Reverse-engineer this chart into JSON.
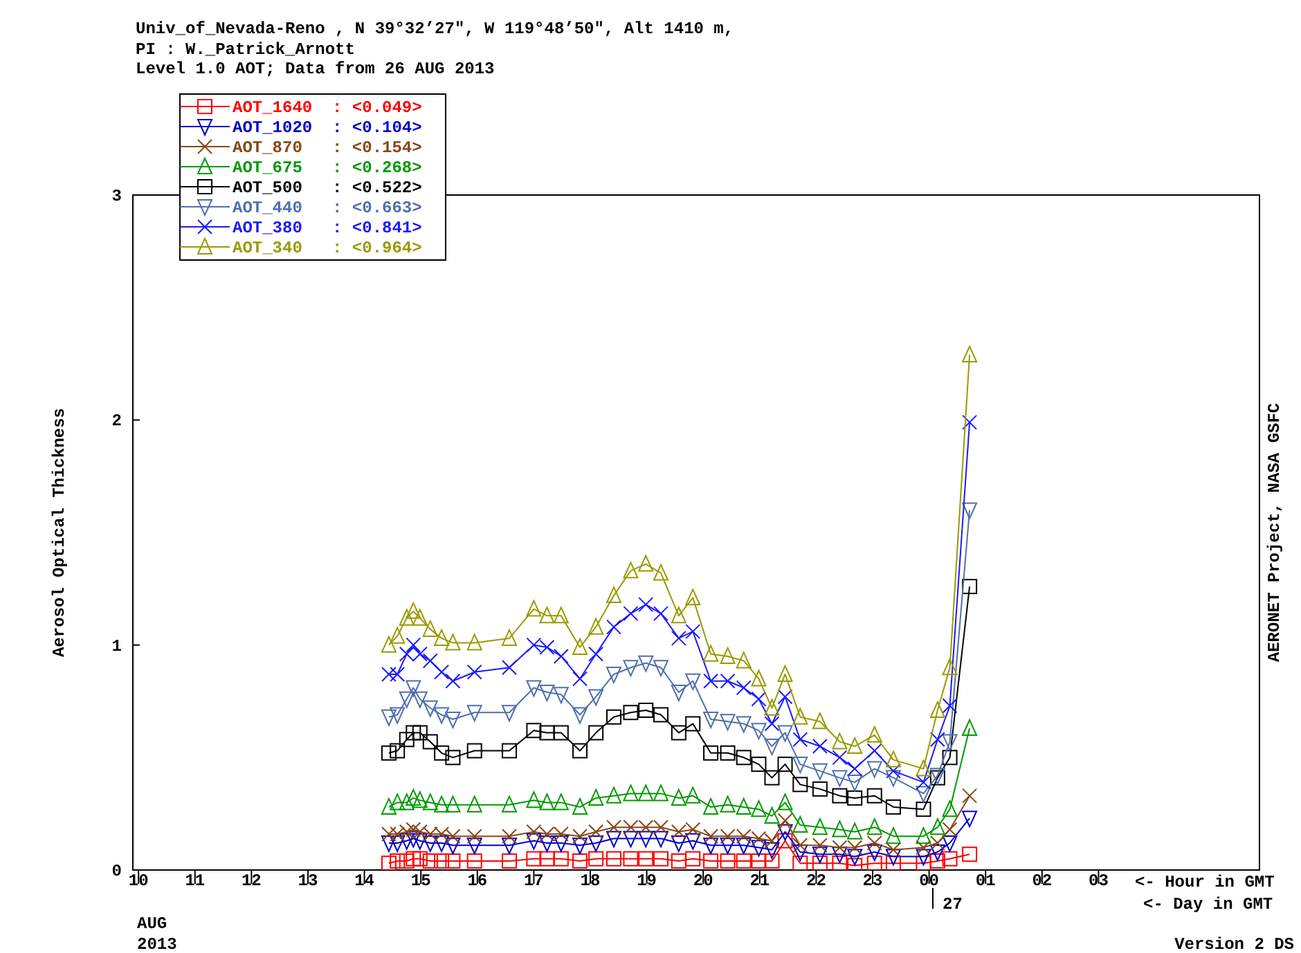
{
  "chart_data": {
    "type": "line",
    "title": "Univ_of_Nevada-Reno , N 39°32’27\", W 119°48’50\", Alt 1410 m,",
    "subtitle": "PI : W._Patrick_Arnott\nLevel 1.0 AOT; Data from 26 AUG 2013",
    "ylabel": "Aerosol Optical Thickness",
    "annotations": [
      "27",
      "<- Hour in GMT",
      "<- Day in GMT",
      "AUG",
      "2013",
      "Version 2 DS",
      "AERONET Project, NASA GSFC"
    ],
    "x": [
      "2013-08-26T14:26",
      "2013-08-26T14:35",
      "2013-08-26T14:45",
      "2013-08-26T14:52",
      "2013-08-26T14:59",
      "2013-08-26T15:10",
      "2013-08-26T15:22",
      "2013-08-26T15:34",
      "2013-08-26T15:57",
      "2013-08-26T16:34",
      "2013-08-26T17:00",
      "2013-08-26T17:14",
      "2013-08-26T17:29",
      "2013-08-26T17:49",
      "2013-08-26T18:06",
      "2013-08-26T18:25",
      "2013-08-26T18:43",
      "2013-08-26T18:59",
      "2013-08-26T19:15",
      "2013-08-26T19:34",
      "2013-08-26T19:49",
      "2013-08-26T20:08",
      "2013-08-26T20:26",
      "2013-08-26T20:43",
      "2013-08-26T20:59",
      "2013-08-26T21:13",
      "2013-08-26T21:27",
      "2013-08-26T21:43",
      "2013-08-26T22:04",
      "2013-08-26T22:25",
      "2013-08-26T22:41",
      "2013-08-26T23:02",
      "2013-08-26T23:22",
      "2013-08-26T23:54",
      "2013-08-27T00:09",
      "2013-08-27T00:22",
      "2013-08-27T00:43"
    ],
    "xlim": [
      "2013-08-26T09:54",
      "2013-08-27T05:51"
    ],
    "xticks": [
      {
        "value": "2013-08-26T10:00",
        "label": "10"
      },
      {
        "value": "2013-08-26T11:00",
        "label": "11"
      },
      {
        "value": "2013-08-26T12:00",
        "label": "12"
      },
      {
        "value": "2013-08-26T13:00",
        "label": "13"
      },
      {
        "value": "2013-08-26T14:00",
        "label": "14"
      },
      {
        "value": "2013-08-26T15:00",
        "label": "15"
      },
      {
        "value": "2013-08-26T16:00",
        "label": "16"
      },
      {
        "value": "2013-08-26T17:00",
        "label": "17"
      },
      {
        "value": "2013-08-26T18:00",
        "label": "18"
      },
      {
        "value": "2013-08-26T19:00",
        "label": "19"
      },
      {
        "value": "2013-08-26T20:00",
        "label": "20"
      },
      {
        "value": "2013-08-26T21:00",
        "label": "21"
      },
      {
        "value": "2013-08-26T22:00",
        "label": "22"
      },
      {
        "value": "2013-08-26T23:00",
        "label": "23"
      },
      {
        "value": "2013-08-27T00:00",
        "label": "00"
      },
      {
        "value": "2013-08-27T01:00",
        "label": "01"
      },
      {
        "value": "2013-08-27T02:00",
        "label": "02"
      },
      {
        "value": "2013-08-27T03:00",
        "label": "03"
      }
    ],
    "ylim": [
      0,
      3
    ],
    "yticks": [
      0,
      1,
      2,
      3
    ],
    "grid": false,
    "legend": "top left",
    "line_style": "solid",
    "series": [
      {
        "name": "AOT_1640  : <0.049>",
        "color": "#ff0000",
        "marker": "square",
        "values": [
          0.03,
          0.04,
          0.04,
          0.05,
          0.05,
          0.04,
          0.04,
          0.04,
          0.04,
          0.04,
          0.05,
          0.05,
          0.05,
          0.04,
          0.05,
          0.05,
          0.05,
          0.05,
          0.05,
          0.04,
          0.05,
          0.04,
          0.04,
          0.04,
          0.04,
          0.04,
          0.13,
          0.03,
          0.03,
          0.03,
          0.02,
          0.03,
          0.03,
          0.03,
          0.04,
          0.05,
          0.07
        ]
      },
      {
        "name": "AOT_1020  : <0.104>",
        "color": "#0000cc",
        "marker": "triangle-down",
        "values": [
          0.12,
          0.12,
          0.13,
          0.14,
          0.13,
          0.12,
          0.12,
          0.11,
          0.11,
          0.11,
          0.13,
          0.12,
          0.12,
          0.11,
          0.12,
          0.14,
          0.14,
          0.14,
          0.14,
          0.12,
          0.13,
          0.11,
          0.11,
          0.11,
          0.1,
          0.09,
          0.17,
          0.08,
          0.07,
          0.07,
          0.06,
          0.08,
          0.06,
          0.06,
          0.08,
          0.12,
          0.23
        ]
      },
      {
        "name": "AOT_870   : <0.154>",
        "color": "#8b4513",
        "marker": "cross",
        "values": [
          0.16,
          0.16,
          0.17,
          0.18,
          0.17,
          0.16,
          0.16,
          0.15,
          0.15,
          0.15,
          0.17,
          0.16,
          0.16,
          0.15,
          0.17,
          0.19,
          0.19,
          0.19,
          0.19,
          0.17,
          0.18,
          0.15,
          0.15,
          0.15,
          0.14,
          0.13,
          0.22,
          0.11,
          0.11,
          0.1,
          0.1,
          0.12,
          0.09,
          0.1,
          0.12,
          0.18,
          0.33
        ]
      },
      {
        "name": "AOT_675   : <0.268>",
        "color": "#009900",
        "marker": "triangle",
        "values": [
          0.28,
          0.3,
          0.3,
          0.32,
          0.31,
          0.3,
          0.29,
          0.29,
          0.29,
          0.29,
          0.31,
          0.3,
          0.3,
          0.28,
          0.32,
          0.33,
          0.34,
          0.34,
          0.34,
          0.32,
          0.33,
          0.28,
          0.29,
          0.28,
          0.27,
          0.24,
          0.3,
          0.2,
          0.19,
          0.18,
          0.17,
          0.19,
          0.15,
          0.15,
          0.19,
          0.27,
          0.63
        ]
      },
      {
        "name": "AOT_500   : <0.522>",
        "color": "#000000",
        "marker": "square",
        "values": [
          0.52,
          0.53,
          0.58,
          0.61,
          0.61,
          0.57,
          0.52,
          0.5,
          0.53,
          0.53,
          0.62,
          0.61,
          0.61,
          0.53,
          0.61,
          0.68,
          0.7,
          0.71,
          0.69,
          0.61,
          0.65,
          0.52,
          0.52,
          0.5,
          0.47,
          0.41,
          0.47,
          0.38,
          0.36,
          0.33,
          0.32,
          0.33,
          0.28,
          0.27,
          0.41,
          0.5,
          1.26
        ]
      },
      {
        "name": "AOT_440   : <0.663>",
        "color": "#4f6fae",
        "marker": "triangle-down",
        "values": [
          0.68,
          0.69,
          0.76,
          0.81,
          0.76,
          0.72,
          0.69,
          0.67,
          0.7,
          0.7,
          0.81,
          0.79,
          0.78,
          0.69,
          0.77,
          0.87,
          0.9,
          0.92,
          0.9,
          0.79,
          0.84,
          0.67,
          0.66,
          0.65,
          0.62,
          0.55,
          0.61,
          0.47,
          0.44,
          0.41,
          0.39,
          0.45,
          0.41,
          0.34,
          0.42,
          0.57,
          1.6
        ]
      },
      {
        "name": "AOT_380   : <0.841>",
        "color": "#1a1aff",
        "marker": "cross",
        "values": [
          0.87,
          0.87,
          0.96,
          1.0,
          0.96,
          0.93,
          0.88,
          0.84,
          0.88,
          0.9,
          1.0,
          0.99,
          0.95,
          0.85,
          0.96,
          1.08,
          1.14,
          1.18,
          1.14,
          1.03,
          1.06,
          0.84,
          0.84,
          0.81,
          0.76,
          0.65,
          0.77,
          0.58,
          0.55,
          0.5,
          0.45,
          0.53,
          0.44,
          0.39,
          0.58,
          0.73,
          1.99
        ]
      },
      {
        "name": "AOT_340   : <0.964>",
        "color": "#999900",
        "marker": "triangle",
        "values": [
          1.0,
          1.04,
          1.12,
          1.15,
          1.12,
          1.07,
          1.03,
          1.01,
          1.01,
          1.03,
          1.16,
          1.13,
          1.13,
          0.99,
          1.08,
          1.22,
          1.33,
          1.36,
          1.32,
          1.13,
          1.21,
          0.96,
          0.95,
          0.93,
          0.85,
          0.72,
          0.87,
          0.68,
          0.66,
          0.57,
          0.55,
          0.6,
          0.49,
          0.45,
          0.71,
          0.9,
          2.29
        ]
      }
    ]
  }
}
